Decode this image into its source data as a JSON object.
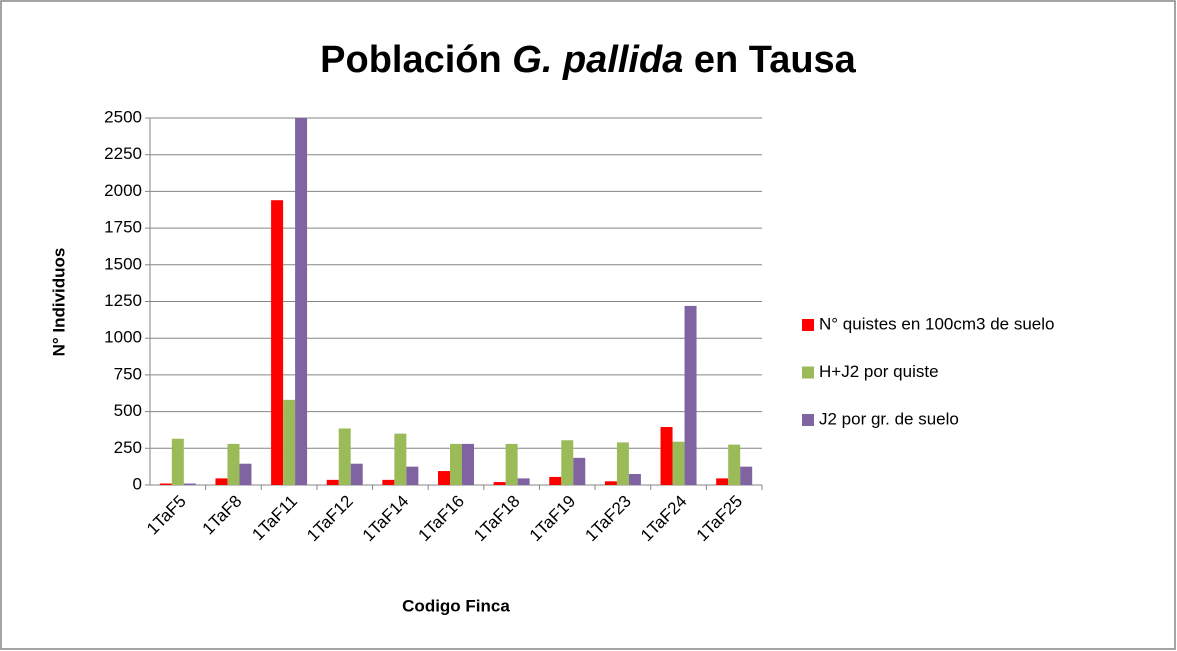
{
  "chart_data": {
    "type": "bar",
    "title": [
      "Población",
      "G. pallida",
      "en Tausa"
    ],
    "x_label": "Codigo Finca",
    "y_label": "N° Individuos",
    "categories": [
      "1TaF5",
      "1TaF8",
      "1TaF11",
      "1TaF12",
      "1TaF14",
      "1TaF16",
      "1TaF18",
      "1TaF19",
      "1TaF23",
      "1TaF24",
      "1TaF25"
    ],
    "series": [
      {
        "name": "N° quistes en 100cm3 de suelo",
        "color": "#ff0000",
        "values": [
          10,
          45,
          1940,
          35,
          35,
          95,
          20,
          55,
          25,
          395,
          45
        ]
      },
      {
        "name": "H+J2 por quiste",
        "color": "#9bbb59",
        "values": [
          315,
          280,
          580,
          385,
          350,
          280,
          280,
          305,
          290,
          295,
          275
        ]
      },
      {
        "name": "J2 por gr. de suelo",
        "color": "#8064a2",
        "values": [
          10,
          145,
          2500,
          145,
          125,
          280,
          45,
          185,
          75,
          1220,
          125
        ]
      }
    ],
    "ylim": [
      0,
      2500
    ],
    "yticks": [
      0,
      250,
      500,
      750,
      1000,
      1250,
      1500,
      1750,
      2000,
      2250,
      2500
    ],
    "grid": true,
    "legend": "right"
  }
}
